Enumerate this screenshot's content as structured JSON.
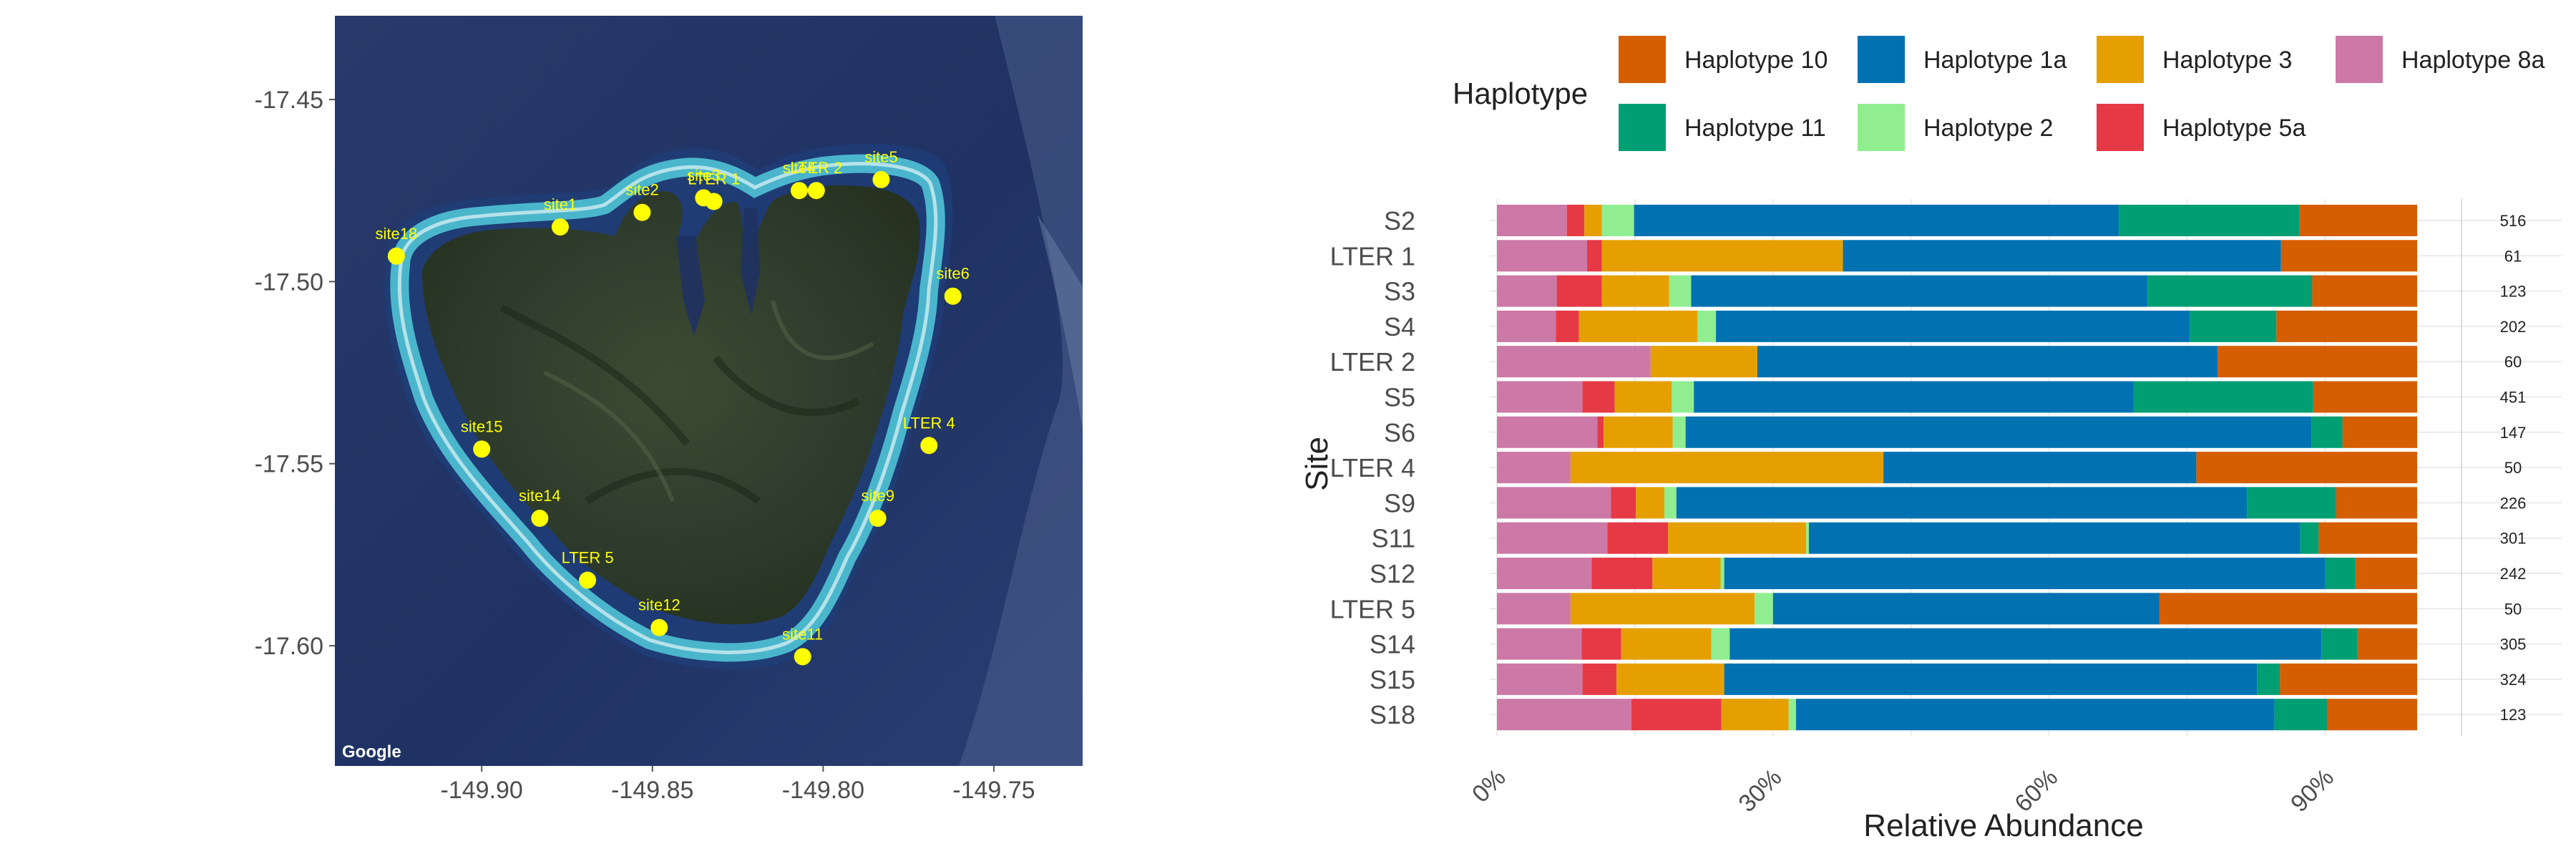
{
  "chart_data": [
    {
      "type": "scatter",
      "panel": "map",
      "basemap_credit": "Google",
      "x_ticks": [
        -149.9,
        -149.85,
        -149.8,
        -149.75
      ],
      "x_tick_labels": [
        "-149.90",
        "-149.85",
        "-149.80",
        "-149.75"
      ],
      "y_ticks": [
        -17.45,
        -17.5,
        -17.55,
        -17.6
      ],
      "y_tick_labels": [
        "-17.45",
        "-17.50",
        "-17.55",
        "-17.60"
      ],
      "xlim": [
        -149.943,
        -149.724
      ],
      "ylim": [
        -17.633,
        -17.427
      ],
      "point_color": "#ffff00",
      "label_color": "#ffff00",
      "points": [
        {
          "label": "site18",
          "lon": -149.925,
          "lat": -17.493
        },
        {
          "label": "site1",
          "lon": -149.877,
          "lat": -17.485
        },
        {
          "label": "site2",
          "lon": -149.853,
          "lat": -17.481
        },
        {
          "label": "site3",
          "lon": -149.835,
          "lat": -17.477
        },
        {
          "label": "LTER 1",
          "lon": -149.832,
          "lat": -17.478
        },
        {
          "label": "site4",
          "lon": -149.807,
          "lat": -17.475
        },
        {
          "label": "LTER 2",
          "lon": -149.802,
          "lat": -17.475
        },
        {
          "label": "site5",
          "lon": -149.783,
          "lat": -17.472
        },
        {
          "label": "site6",
          "lon": -149.762,
          "lat": -17.504
        },
        {
          "label": "LTER 4",
          "lon": -149.769,
          "lat": -17.545
        },
        {
          "label": "site15",
          "lon": -149.9,
          "lat": -17.546
        },
        {
          "label": "site14",
          "lon": -149.883,
          "lat": -17.565
        },
        {
          "label": "site9",
          "lon": -149.784,
          "lat": -17.565
        },
        {
          "label": "LTER 5",
          "lon": -149.869,
          "lat": -17.582
        },
        {
          "label": "site12",
          "lon": -149.848,
          "lat": -17.595
        },
        {
          "label": "site11",
          "lon": -149.806,
          "lat": -17.603
        }
      ]
    },
    {
      "type": "bar",
      "orientation": "horizontal",
      "stacked": true,
      "xlabel": "Relative Abundance",
      "ylabel": "Site",
      "x_ticks": [
        0,
        0.3,
        0.6,
        0.9
      ],
      "x_tick_labels": [
        "0%",
        "30%",
        "60%",
        "90%"
      ],
      "xlim": [
        0,
        1
      ],
      "legend": {
        "title": "Haplotype",
        "position": "top",
        "entries": [
          {
            "name": "Haplotype 10",
            "color": "#d55e00"
          },
          {
            "name": "Haplotype 1a",
            "color": "#0072b2"
          },
          {
            "name": "Haplotype 3",
            "color": "#e69f00"
          },
          {
            "name": "Haplotype 8a",
            "color": "#cc79a7"
          },
          {
            "name": "Haplotype 11",
            "color": "#009e73"
          },
          {
            "name": "Haplotype 2",
            "color": "#90ee90"
          },
          {
            "name": "Haplotype 5a",
            "color": "#e63946"
          }
        ]
      },
      "stack_order": [
        "Haplotype 8a",
        "Haplotype 5a",
        "Haplotype 3",
        "Haplotype 2",
        "Haplotype 1a",
        "Haplotype 11",
        "Haplotype 10"
      ],
      "rows": [
        {
          "site": "S2",
          "n": "516",
          "values": [
            0.076,
            0.019,
            0.019,
            0.035,
            0.527,
            0.196,
            0.128
          ]
        },
        {
          "site": "LTER 1",
          "n": "61",
          "values": [
            0.098,
            0.016,
            0.262,
            0.0,
            0.476,
            0.0,
            0.148
          ]
        },
        {
          "site": "S3",
          "n": "123",
          "values": [
            0.065,
            0.049,
            0.073,
            0.024,
            0.496,
            0.179,
            0.114
          ]
        },
        {
          "site": "S4",
          "n": "202",
          "values": [
            0.064,
            0.025,
            0.129,
            0.02,
            0.515,
            0.094,
            0.153
          ]
        },
        {
          "site": "LTER 2",
          "n": "60",
          "values": [
            0.167,
            0.0,
            0.116,
            0.0,
            0.5,
            0.0,
            0.217
          ]
        },
        {
          "site": "S5",
          "n": "451",
          "values": [
            0.093,
            0.035,
            0.062,
            0.024,
            0.478,
            0.195,
            0.113
          ]
        },
        {
          "site": "S6",
          "n": "147",
          "values": [
            0.109,
            0.007,
            0.075,
            0.014,
            0.68,
            0.034,
            0.081
          ]
        },
        {
          "site": "LTER 4",
          "n": "50",
          "values": [
            0.08,
            0.0,
            0.34,
            0.0,
            0.34,
            0.0,
            0.24
          ]
        },
        {
          "site": "S9",
          "n": "226",
          "values": [
            0.124,
            0.027,
            0.031,
            0.013,
            0.62,
            0.097,
            0.088
          ]
        },
        {
          "site": "S11",
          "n": "301",
          "values": [
            0.12,
            0.066,
            0.15,
            0.003,
            0.534,
            0.02,
            0.107
          ]
        },
        {
          "site": "S12",
          "n": "242",
          "values": [
            0.103,
            0.066,
            0.074,
            0.004,
            0.653,
            0.033,
            0.067
          ]
        },
        {
          "site": "LTER 5",
          "n": "50",
          "values": [
            0.08,
            0.0,
            0.2,
            0.02,
            0.42,
            0.0,
            0.28
          ]
        },
        {
          "site": "S14",
          "n": "305",
          "values": [
            0.092,
            0.043,
            0.098,
            0.02,
            0.643,
            0.039,
            0.065
          ]
        },
        {
          "site": "S15",
          "n": "324",
          "values": [
            0.093,
            0.037,
            0.117,
            0.0,
            0.579,
            0.025,
            0.149
          ]
        },
        {
          "site": "S18",
          "n": "123",
          "values": [
            0.146,
            0.098,
            0.073,
            0.008,
            0.52,
            0.057,
            0.098
          ]
        }
      ]
    }
  ]
}
